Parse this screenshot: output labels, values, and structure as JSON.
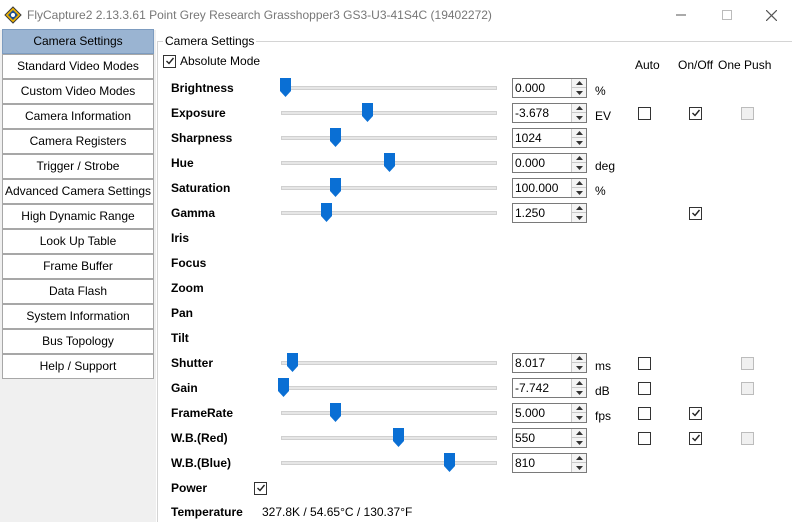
{
  "window": {
    "title": "FlyCapture2 2.13.3.61  Point Grey Research Grasshopper3 GS3-U3-41S4C (19402272)"
  },
  "sidebar": {
    "items": [
      {
        "label": "Camera Settings",
        "active": true
      },
      {
        "label": "Standard Video Modes",
        "active": false
      },
      {
        "label": "Custom Video Modes",
        "active": false
      },
      {
        "label": "Camera Information",
        "active": false
      },
      {
        "label": "Camera Registers",
        "active": false
      },
      {
        "label": "Trigger / Strobe",
        "active": false
      },
      {
        "label": "Advanced Camera Settings",
        "active": false
      },
      {
        "label": "High Dynamic Range",
        "active": false
      },
      {
        "label": "Look Up Table",
        "active": false
      },
      {
        "label": "Frame Buffer",
        "active": false
      },
      {
        "label": "Data Flash",
        "active": false
      },
      {
        "label": "System Information",
        "active": false
      },
      {
        "label": "Bus Topology",
        "active": false
      },
      {
        "label": "Help / Support",
        "active": false
      }
    ]
  },
  "settings": {
    "group_title": "Camera Settings",
    "absolute_mode_label": "Absolute Mode",
    "absolute_mode_checked": true,
    "columns": {
      "auto": "Auto",
      "onoff": "On/Off",
      "onepush": "One Push"
    },
    "accent_color": "#0a6fd4",
    "properties": [
      {
        "key": "brightness",
        "label": "Brightness",
        "slider": 0.02,
        "value": "0.000",
        "unit": "%",
        "auto": null,
        "onoff": null,
        "onepush": null
      },
      {
        "key": "exposure",
        "label": "Exposure",
        "slider": 0.4,
        "value": "-3.678",
        "unit": "EV",
        "auto": false,
        "onoff": true,
        "onepush": "disabled"
      },
      {
        "key": "sharpness",
        "label": "Sharpness",
        "slider": 0.25,
        "value": "1024",
        "unit": "",
        "auto": null,
        "onoff": null,
        "onepush": null
      },
      {
        "key": "hue",
        "label": "Hue",
        "slider": 0.5,
        "value": "0.000",
        "unit": "deg",
        "auto": null,
        "onoff": null,
        "onepush": null
      },
      {
        "key": "saturation",
        "label": "Saturation",
        "slider": 0.25,
        "value": "100.000",
        "unit": "%",
        "auto": null,
        "onoff": null,
        "onepush": null
      },
      {
        "key": "gamma",
        "label": "Gamma",
        "slider": 0.21,
        "value": "1.250",
        "unit": "",
        "auto": null,
        "onoff": true,
        "onepush": null
      },
      {
        "key": "iris",
        "label": "Iris",
        "slider": null,
        "value": null,
        "unit": "",
        "auto": null,
        "onoff": null,
        "onepush": null
      },
      {
        "key": "focus",
        "label": "Focus",
        "slider": null,
        "value": null,
        "unit": "",
        "auto": null,
        "onoff": null,
        "onepush": null
      },
      {
        "key": "zoom",
        "label": "Zoom",
        "slider": null,
        "value": null,
        "unit": "",
        "auto": null,
        "onoff": null,
        "onepush": null
      },
      {
        "key": "pan",
        "label": "Pan",
        "slider": null,
        "value": null,
        "unit": "",
        "auto": null,
        "onoff": null,
        "onepush": null
      },
      {
        "key": "tilt",
        "label": "Tilt",
        "slider": null,
        "value": null,
        "unit": "",
        "auto": null,
        "onoff": null,
        "onepush": null
      },
      {
        "key": "shutter",
        "label": "Shutter",
        "slider": 0.05,
        "value": "8.017",
        "unit": "ms",
        "auto": false,
        "onoff": null,
        "onepush": "disabled"
      },
      {
        "key": "gain",
        "label": "Gain",
        "slider": 0.01,
        "value": "-7.742",
        "unit": "dB",
        "auto": false,
        "onoff": null,
        "onepush": "disabled"
      },
      {
        "key": "framerate",
        "label": "FrameRate",
        "slider": 0.25,
        "value": "5.000",
        "unit": "fps",
        "auto": false,
        "onoff": true,
        "onepush": null
      },
      {
        "key": "wb_red",
        "label": "W.B.(Red)",
        "slider": 0.54,
        "value": "550",
        "unit": "",
        "auto": false,
        "onoff": true,
        "onepush": "disabled"
      },
      {
        "key": "wb_blue",
        "label": "W.B.(Blue)",
        "slider": 0.78,
        "value": "810",
        "unit": "",
        "auto": null,
        "onoff": null,
        "onepush": null
      }
    ],
    "power": {
      "label": "Power",
      "checked": true
    },
    "temperature": {
      "label": "Temperature",
      "value": "327.8K / 54.65°C / 130.37°F"
    }
  }
}
